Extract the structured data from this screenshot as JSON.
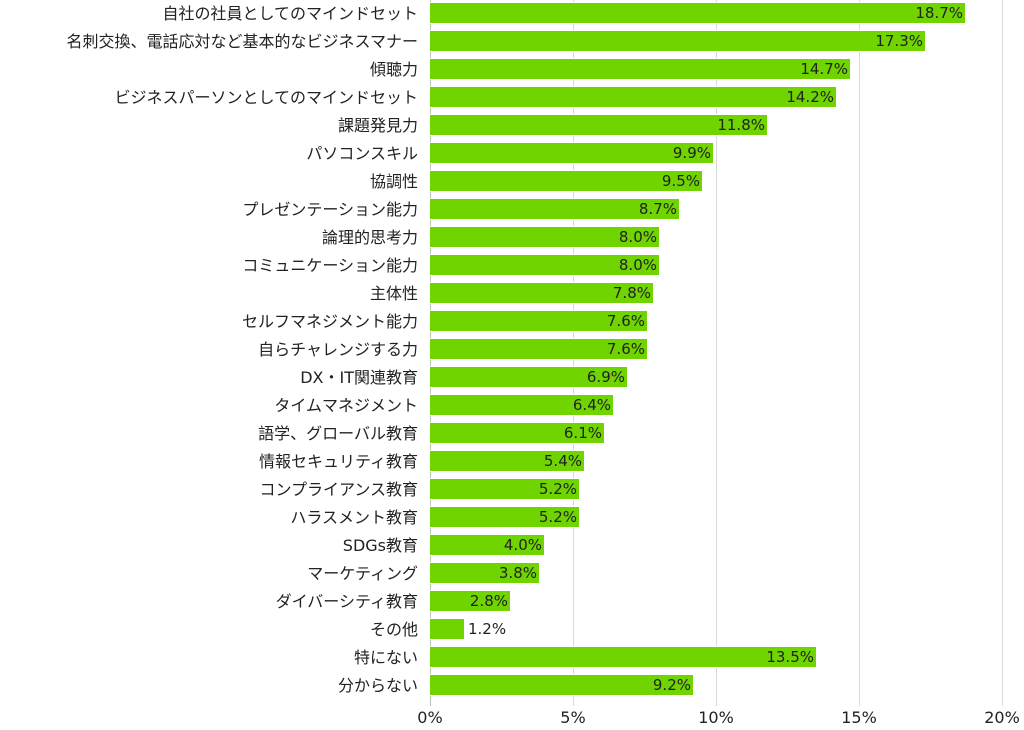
{
  "chart_data": {
    "type": "bar",
    "orientation": "horizontal",
    "title": "",
    "xlabel": "",
    "ylabel": "",
    "xlim": [
      0,
      20
    ],
    "x_ticks": [
      0,
      5,
      10,
      15,
      20
    ],
    "x_tick_labels": [
      "0%",
      "5%",
      "10%",
      "15%",
      "20%"
    ],
    "grid": true,
    "legend": null,
    "bar_color": "#6fd400",
    "categories": [
      "自社の社員としてのマインドセット",
      "名刺交換、電話応対など基本的なビジネスマナー",
      "傾聴力",
      "ビジネスパーソンとしてのマインドセット",
      "課題発見力",
      "パソコンスキル",
      "協調性",
      "プレゼンテーション能力",
      "論理的思考力",
      "コミュニケーション能力",
      "主体性",
      "セルフマネジメント能力",
      "自らチャレンジする力",
      "DX・IT関連教育",
      "タイムマネジメント",
      "語学、グローバル教育",
      "情報セキュリティ教育",
      "コンプライアンス教育",
      "ハラスメント教育",
      "SDGs教育",
      "マーケティング",
      "ダイバーシティ教育",
      "その他",
      "特にない",
      "分からない"
    ],
    "values": [
      18.7,
      17.3,
      14.7,
      14.2,
      11.8,
      9.9,
      9.5,
      8.7,
      8.0,
      8.0,
      7.8,
      7.6,
      7.6,
      6.9,
      6.4,
      6.1,
      5.4,
      5.2,
      5.2,
      4.0,
      3.8,
      2.8,
      1.2,
      13.5,
      9.2
    ],
    "value_labels": [
      "18.7%",
      "17.3%",
      "14.7%",
      "14.2%",
      "11.8%",
      "9.9%",
      "9.5%",
      "8.7%",
      "8.0%",
      "8.0%",
      "7.8%",
      "7.6%",
      "7.6%",
      "6.9%",
      "6.4%",
      "6.1%",
      "5.4%",
      "5.2%",
      "5.2%",
      "4.0%",
      "3.8%",
      "2.8%",
      "1.2%",
      "13.5%",
      "9.2%"
    ]
  }
}
